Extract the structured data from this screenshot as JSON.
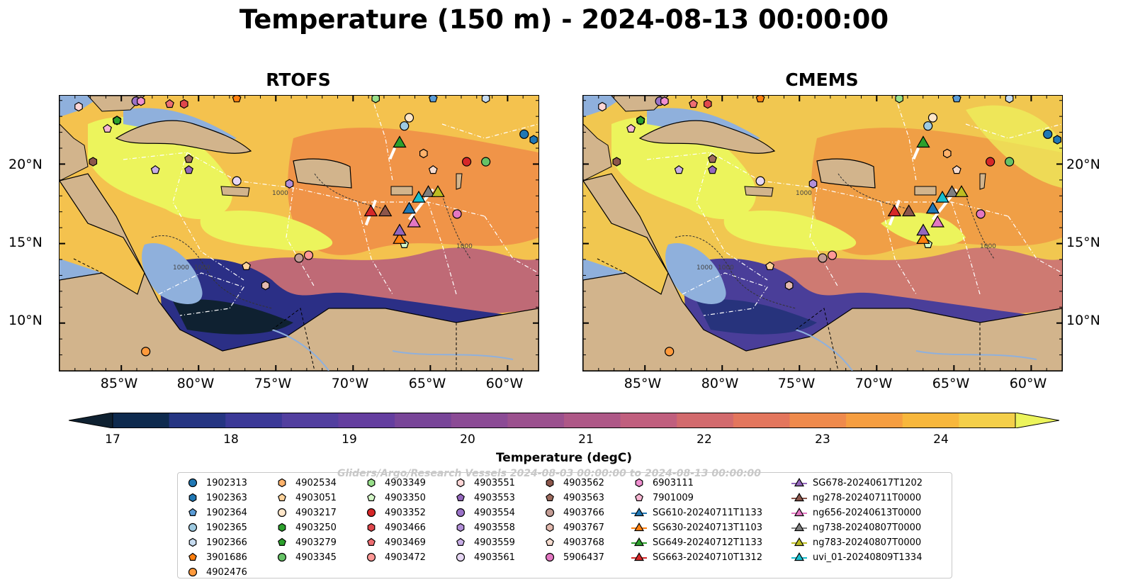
{
  "title": "Temperature (150 m) - 2024-08-13 00:00:00",
  "panels": [
    {
      "title": "RTOFS"
    },
    {
      "title": "CMEMS"
    }
  ],
  "axes": {
    "lon_labels": [
      "85°W",
      "80°W",
      "75°W",
      "70°W",
      "65°W",
      "60°W"
    ],
    "lat_labels": [
      "20°N",
      "15°N",
      "10°N"
    ],
    "lon_range": [
      -89,
      -58
    ],
    "lat_range": [
      7,
      24.3
    ]
  },
  "contour_labels": [
    "1000",
    "1000",
    "1000",
    "1000"
  ],
  "colorbar": {
    "label": "Temperature (degC)",
    "ticks": [
      "17",
      "18",
      "19",
      "20",
      "21",
      "22",
      "23",
      "24"
    ],
    "range": [
      16.5,
      24.5
    ],
    "colors": [
      "#0f2131",
      "#0e2a4e",
      "#253582",
      "#3b3997",
      "#523f9f",
      "#643e9f",
      "#784598",
      "#8b4b95",
      "#9b518e",
      "#ae5887",
      "#c05f7e",
      "#d26a6d",
      "#e3765d",
      "#ef8a4c",
      "#f69e40",
      "#f8b73c",
      "#f4cf4a",
      "#ecf45c"
    ],
    "extend": "both"
  },
  "colors": {
    "land": "#d2b48c",
    "shelf": "#8fb0dc",
    "deep_low": "#0f2131",
    "hot": "#ecf45c",
    "warm": "#f3cc55"
  },
  "legend": {
    "watermark": "Gliders/Argo/Research Vessels 2024-08-03 00:00:00 to 2024-08-13 00:00:00",
    "columns": [
      [
        {
          "label": "1902313",
          "marker": "circle",
          "color": "#1f77b4"
        },
        {
          "label": "1902363",
          "marker": "hexagon",
          "color": "#1f77b4"
        },
        {
          "label": "1902364",
          "marker": "pentagon",
          "color": "#5a9bd5"
        },
        {
          "label": "1902365",
          "marker": "circle",
          "color": "#9ecae1"
        },
        {
          "label": "1902366",
          "marker": "hexagon",
          "color": "#c6dbef"
        },
        {
          "label": "3901686",
          "marker": "pentagon",
          "color": "#ff7f0e"
        },
        {
          "label": "4902476",
          "marker": "circle",
          "color": "#ff9a3c"
        }
      ],
      [
        {
          "label": "4902534",
          "marker": "hexagon",
          "color": "#ffb26b"
        },
        {
          "label": "4903051",
          "marker": "pentagon",
          "color": "#ffd39b"
        },
        {
          "label": "4903217",
          "marker": "circle",
          "color": "#ffe6c9"
        },
        {
          "label": "4903250",
          "marker": "hexagon",
          "color": "#2ca02c"
        },
        {
          "label": "4903279",
          "marker": "pentagon",
          "color": "#2ca02c"
        },
        {
          "label": "4903345",
          "marker": "circle",
          "color": "#66c266"
        }
      ],
      [
        {
          "label": "4903349",
          "marker": "hexagon",
          "color": "#98df8a"
        },
        {
          "label": "4903350",
          "marker": "pentagon",
          "color": "#d4f7c8"
        },
        {
          "label": "4903352",
          "marker": "circle",
          "color": "#d62728"
        },
        {
          "label": "4903466",
          "marker": "hexagon",
          "color": "#e0474c"
        },
        {
          "label": "4903469",
          "marker": "pentagon",
          "color": "#ee6e72"
        },
        {
          "label": "4903472",
          "marker": "circle",
          "color": "#ff9896"
        }
      ],
      [
        {
          "label": "4903551",
          "marker": "hexagon",
          "color": "#ffd6d6"
        },
        {
          "label": "4903553",
          "marker": "pentagon",
          "color": "#9467bd"
        },
        {
          "label": "4903554",
          "marker": "circle",
          "color": "#9a72c8"
        },
        {
          "label": "4903558",
          "marker": "hexagon",
          "color": "#b28fd8"
        },
        {
          "label": "4903559",
          "marker": "pentagon",
          "color": "#c8aee6"
        },
        {
          "label": "4903561",
          "marker": "circle",
          "color": "#e6d6f3"
        }
      ],
      [
        {
          "label": "4903562",
          "marker": "hexagon",
          "color": "#8c564b"
        },
        {
          "label": "4903563",
          "marker": "pentagon",
          "color": "#9e6b5e"
        },
        {
          "label": "4903766",
          "marker": "circle",
          "color": "#c49c94"
        },
        {
          "label": "4903767",
          "marker": "hexagon",
          "color": "#e3b9ae"
        },
        {
          "label": "4903768",
          "marker": "pentagon",
          "color": "#f7dccf"
        },
        {
          "label": "5906437",
          "marker": "circle",
          "color": "#e377c2"
        }
      ],
      [
        {
          "label": "6903111",
          "marker": "hexagon",
          "color": "#f08fd0"
        },
        {
          "label": "7901009",
          "marker": "pentagon",
          "color": "#f7b6d2"
        },
        {
          "label": "SG610-20240711T1133",
          "marker": "triangle",
          "color": "#1f77b4"
        },
        {
          "label": "SG630-20240713T1103",
          "marker": "triangle",
          "color": "#ff7f0e"
        },
        {
          "label": "SG649-20240712T1133",
          "marker": "triangle",
          "color": "#2ca02c"
        },
        {
          "label": "SG663-20240710T1312",
          "marker": "triangle",
          "color": "#d62728"
        }
      ],
      [
        {
          "label": "SG678-20240617T1202",
          "marker": "triangle",
          "color": "#9467bd"
        },
        {
          "label": "ng278-20240711T0000",
          "marker": "triangle",
          "color": "#8c564b"
        },
        {
          "label": "ng656-20240613T0000",
          "marker": "triangle",
          "color": "#e377c2"
        },
        {
          "label": "ng738-20240807T0000",
          "marker": "triangle",
          "color": "#7f7f7f"
        },
        {
          "label": "ng783-20240807T0000",
          "marker": "triangle",
          "color": "#bcbd22"
        },
        {
          "label": "uvi_01-20240809T1334",
          "marker": "triangle",
          "color": "#17becf"
        }
      ]
    ]
  }
}
